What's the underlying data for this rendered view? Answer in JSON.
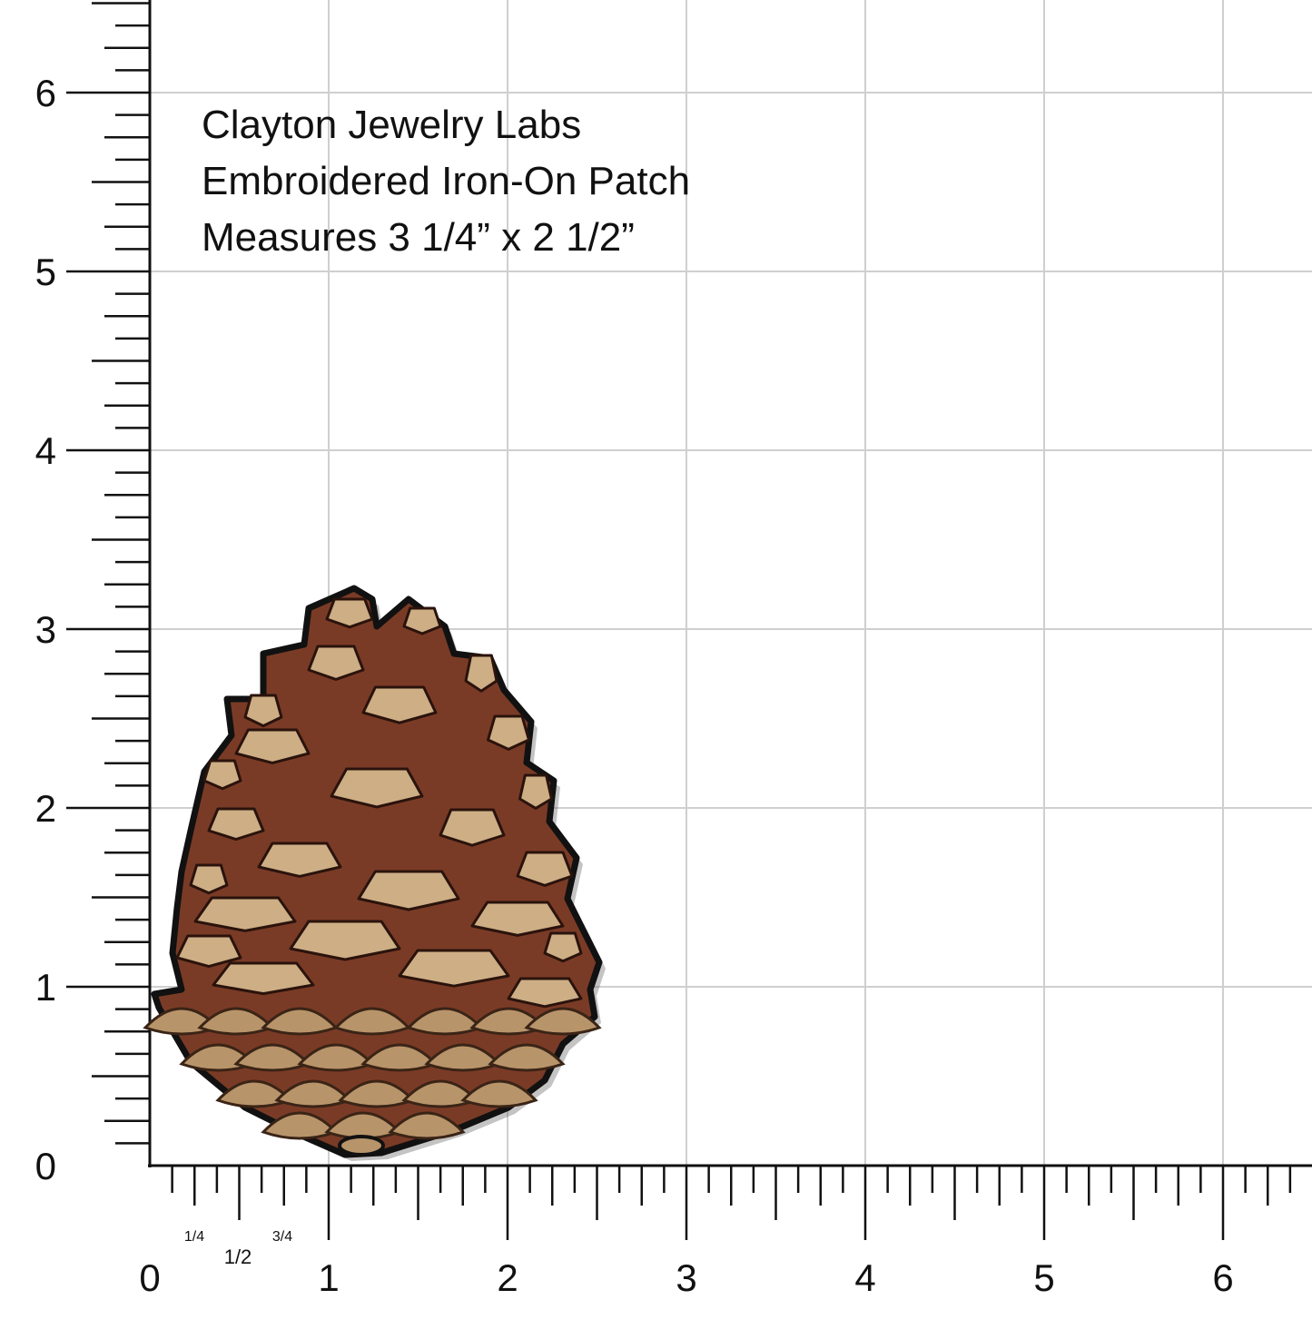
{
  "caption": [
    "Clayton Jewelry Labs",
    "Embroidered Iron-On Patch",
    "Measures 3 1/4” x 2 1/2”"
  ],
  "ruler": {
    "x_labels": [
      0,
      1,
      2,
      3,
      4,
      5,
      6
    ],
    "y_labels": [
      0,
      1,
      2,
      3,
      4,
      5,
      6
    ],
    "fractions": [
      "1/4",
      "1/2",
      "3/4"
    ]
  }
}
